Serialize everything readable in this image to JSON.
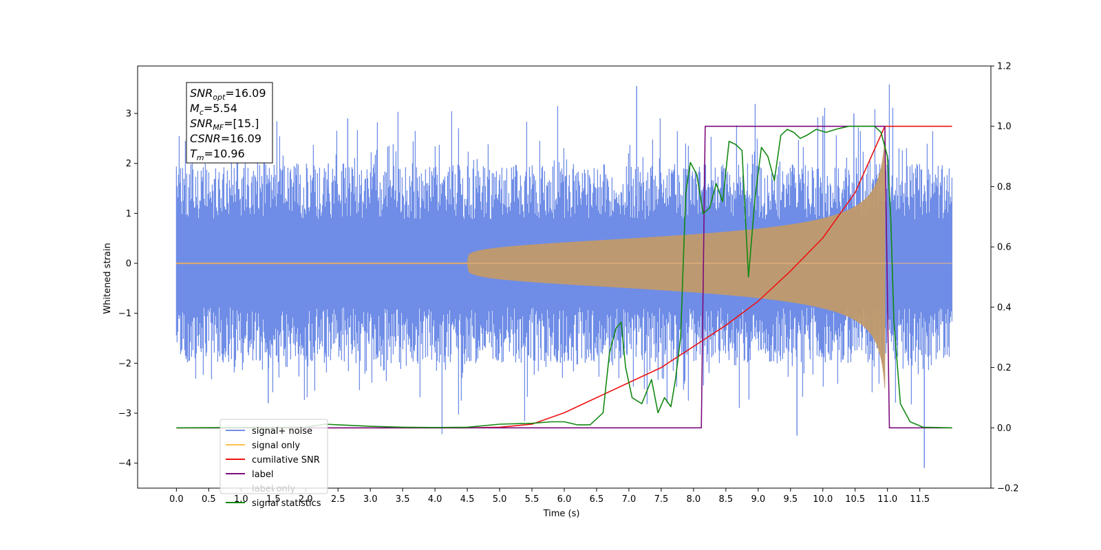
{
  "chart_data": {
    "type": "line",
    "title": "",
    "xlabel": "Time (s)",
    "ylabel": "Whitened strain",
    "xlim": [
      -0.6,
      12.6
    ],
    "ylim": [
      -4.5,
      3.95
    ],
    "ylim_right": [
      -0.2,
      1.2
    ],
    "x_ticks": [
      "0.0",
      "0.5",
      "1.0",
      "1.5",
      "2.0",
      "2.5",
      "3.0",
      "3.5",
      "4.0",
      "4.5",
      "5.0",
      "5.5",
      "6.0",
      "6.5",
      "7.0",
      "7.5",
      "8.0",
      "8.5",
      "9.0",
      "9.5",
      "10.0",
      "10.5",
      "11.0",
      "11.5"
    ],
    "y_ticks_left": [
      "3",
      "2",
      "1",
      "0",
      "−1",
      "−2",
      "−3",
      "−4"
    ],
    "y_ticks_right": [
      "1.2",
      "1.0",
      "0.8",
      "0.6",
      "0.4",
      "0.2",
      "0.0",
      "−0.2"
    ],
    "grid": false,
    "legend_position": "lower-left",
    "annotation": [
      {
        "base": "SNR",
        "sub": "opt",
        "value": "=16.09"
      },
      {
        "base": "M",
        "sub": "c",
        "value": "=5.54"
      },
      {
        "base": "SNR",
        "sub": "MF",
        "value": "=[15.]"
      },
      {
        "base": "CSNR",
        "sub": "",
        "value": "=16.09"
      },
      {
        "base": "T",
        "sub": "m",
        "value": "=10.96"
      }
    ],
    "series": [
      {
        "name": "signal+ noise",
        "axis": "left",
        "color": "#6f8de6",
        "noise_band": {
          "x_start": 0.0,
          "x_end": 12.0,
          "typical_min": -1.6,
          "typical_max": 1.6
        },
        "notable_peaks": [
          [
            7.12,
            3.55
          ],
          [
            1.42,
            -2.8
          ],
          [
            9.6,
            -3.45
          ],
          [
            11.57,
            -4.1
          ],
          [
            10.48,
            3.0
          ],
          [
            10.0,
            2.95
          ],
          [
            2.35,
            2.0
          ],
          [
            2.65,
            2.9
          ]
        ]
      },
      {
        "name": "signal only",
        "axis": "left",
        "color": "#c19a6b",
        "chirp": {
          "x_start": 0.0,
          "x_end": 10.96,
          "amplitude_end": 2.5,
          "cutoff": 10.96
        }
      },
      {
        "name": "cumilative SNR",
        "axis": "right",
        "color": "#ee1111",
        "points": [
          [
            0.0,
            0.0
          ],
          [
            4.0,
            0.0
          ],
          [
            4.5,
            0.0
          ],
          [
            5.0,
            0.002
          ],
          [
            5.5,
            0.012
          ],
          [
            6.0,
            0.05
          ],
          [
            6.5,
            0.1
          ],
          [
            7.0,
            0.15
          ],
          [
            7.5,
            0.2
          ],
          [
            8.0,
            0.27
          ],
          [
            8.5,
            0.34
          ],
          [
            9.0,
            0.42
          ],
          [
            9.5,
            0.52
          ],
          [
            10.0,
            0.63
          ],
          [
            10.5,
            0.78
          ],
          [
            10.96,
            1.0
          ],
          [
            12.0,
            1.0
          ]
        ]
      },
      {
        "name": "label",
        "axis": "right",
        "color": "#7b0a7b",
        "points": [
          [
            0.0,
            0.0
          ],
          [
            8.12,
            0.0
          ],
          [
            8.18,
            1.0
          ],
          [
            10.96,
            1.0
          ],
          [
            11.03,
            0.0
          ],
          [
            12.0,
            0.0
          ]
        ]
      },
      {
        "name": "label only",
        "axis": "right",
        "color": "#7b0a7b",
        "hidden": true
      },
      {
        "name": "signal statistics",
        "axis": "right",
        "color": "#118811",
        "points": [
          [
            0.0,
            0.0
          ],
          [
            2.0,
            0.002
          ],
          [
            2.3,
            0.012
          ],
          [
            2.5,
            0.01
          ],
          [
            3.0,
            0.005
          ],
          [
            3.5,
            0.002
          ],
          [
            4.0,
            0.001
          ],
          [
            4.5,
            0.002
          ],
          [
            5.0,
            0.012
          ],
          [
            5.5,
            0.015
          ],
          [
            5.8,
            0.02
          ],
          [
            6.0,
            0.02
          ],
          [
            6.2,
            0.01
          ],
          [
            6.4,
            0.01
          ],
          [
            6.6,
            0.05
          ],
          [
            6.7,
            0.25
          ],
          [
            6.8,
            0.33
          ],
          [
            6.88,
            0.35
          ],
          [
            6.95,
            0.2
          ],
          [
            7.05,
            0.1
          ],
          [
            7.2,
            0.08
          ],
          [
            7.35,
            0.16
          ],
          [
            7.45,
            0.05
          ],
          [
            7.55,
            0.1
          ],
          [
            7.65,
            0.07
          ],
          [
            7.72,
            0.16
          ],
          [
            7.8,
            0.3
          ],
          [
            7.88,
            0.78
          ],
          [
            7.95,
            0.88
          ],
          [
            8.05,
            0.84
          ],
          [
            8.15,
            0.71
          ],
          [
            8.25,
            0.73
          ],
          [
            8.35,
            0.81
          ],
          [
            8.45,
            0.75
          ],
          [
            8.55,
            0.95
          ],
          [
            8.65,
            0.94
          ],
          [
            8.75,
            0.92
          ],
          [
            8.85,
            0.5
          ],
          [
            8.95,
            0.76
          ],
          [
            9.05,
            0.93
          ],
          [
            9.15,
            0.9
          ],
          [
            9.25,
            0.82
          ],
          [
            9.35,
            0.97
          ],
          [
            9.45,
            0.99
          ],
          [
            9.55,
            0.98
          ],
          [
            9.65,
            0.96
          ],
          [
            9.75,
            0.97
          ],
          [
            9.9,
            0.99
          ],
          [
            10.05,
            0.98
          ],
          [
            10.2,
            0.99
          ],
          [
            10.4,
            1.0
          ],
          [
            10.6,
            1.0
          ],
          [
            10.8,
            1.0
          ],
          [
            10.9,
            0.98
          ],
          [
            11.0,
            0.9
          ],
          [
            11.05,
            0.7
          ],
          [
            11.1,
            0.35
          ],
          [
            11.2,
            0.08
          ],
          [
            11.35,
            0.02
          ],
          [
            11.55,
            0.002
          ],
          [
            12.0,
            0.0
          ]
        ]
      }
    ]
  }
}
